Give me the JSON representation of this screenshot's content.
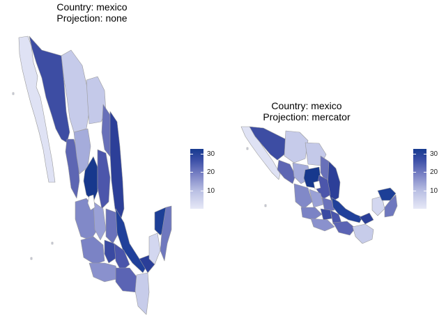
{
  "panels": [
    {
      "title_line1": "Country: mexico",
      "title_line2": "Projection: none",
      "legend": {
        "ticks": [
          "30",
          "20",
          "10"
        ],
        "range": [
          1,
          34
        ]
      }
    },
    {
      "title_line1": "Country: mexico",
      "title_line2": "Projection: mercator",
      "legend": {
        "ticks": [
          "30",
          "20",
          "10"
        ],
        "range": [
          1,
          34
        ]
      }
    }
  ],
  "colors": {
    "low": "#e6e8f7",
    "mid": "#7880c4",
    "high": "#173a8f",
    "border": "#9a9a9a"
  }
}
